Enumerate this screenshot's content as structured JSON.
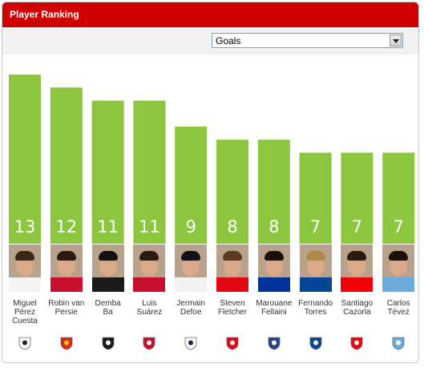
{
  "header": {
    "title": "Player Ranking"
  },
  "filter": {
    "selected": "Goals"
  },
  "colors": {
    "header": "#d00000",
    "bar": "#8cc63f"
  },
  "chart_data": {
    "type": "bar",
    "title": "",
    "xlabel": "",
    "ylabel": "",
    "ylim": [
      0,
      13
    ],
    "categories": [
      "Miguel Pérez Cuesta",
      "Robin van Persie",
      "Demba Ba",
      "Luis Suárez",
      "Jermain Defoe",
      "Steven Fletcher",
      "Marouane Fellaini",
      "Fernando Torres",
      "Santiago Cazorla",
      "Carlos Tévez"
    ],
    "values": [
      13,
      12,
      11,
      11,
      9,
      8,
      8,
      7,
      7,
      7
    ],
    "value_labels": [
      "13",
      "12",
      "11",
      "11",
      "9",
      "8",
      "8",
      "7",
      "7",
      "7"
    ]
  },
  "players": [
    {
      "first": "Miguel",
      "second": "Pérez",
      "third": "Cuesta",
      "club_icon": "swansea-crest-icon",
      "shirt": "#f4f4f4",
      "hair": "#3a2617",
      "crest": "#ffffff",
      "crest_fg": "#222222"
    },
    {
      "first": "Robin van",
      "second": "Persie",
      "third": "",
      "club_icon": "manchester-united-crest-icon",
      "shirt": "#c8102e",
      "hair": "#2a1a10",
      "crest": "#da291c",
      "crest_fg": "#f6c700"
    },
    {
      "first": "Demba",
      "second": "Ba",
      "third": "",
      "club_icon": "newcastle-crest-icon",
      "shirt": "#1a1a1a",
      "hair": "#111111",
      "crest": "#1a1a1a",
      "crest_fg": "#ffffff"
    },
    {
      "first": "Luis",
      "second": "Suárez",
      "third": "",
      "club_icon": "liverpool-crest-icon",
      "shirt": "#c8102e",
      "hair": "#2a1a10",
      "crest": "#c8102e",
      "crest_fg": "#ffffff"
    },
    {
      "first": "Jermain",
      "second": "Defoe",
      "third": "",
      "club_icon": "tottenham-crest-icon",
      "shirt": "#f2f2f2",
      "hair": "#111111",
      "crest": "#ffffff",
      "crest_fg": "#132257"
    },
    {
      "first": "Steven",
      "second": "Fletcher",
      "third": "",
      "club_icon": "sunderland-crest-icon",
      "shirt": "#e30613",
      "hair": "#5a3a20",
      "crest": "#e30613",
      "crest_fg": "#ffffff"
    },
    {
      "first": "Marouane",
      "second": "Fellaini",
      "third": "",
      "club_icon": "everton-crest-icon",
      "shirt": "#003399",
      "hair": "#1a1008",
      "crest": "#274488",
      "crest_fg": "#ffffff"
    },
    {
      "first": "Fernando",
      "second": "Torres",
      "third": "",
      "club_icon": "chelsea-crest-icon",
      "shirt": "#034694",
      "hair": "#b08a4a",
      "crest": "#034694",
      "crest_fg": "#ffffff"
    },
    {
      "first": "Santiago",
      "second": "Cazorla",
      "third": "",
      "club_icon": "arsenal-crest-icon",
      "shirt": "#ef0107",
      "hair": "#2a1a10",
      "crest": "#ef0107",
      "crest_fg": "#ffffff"
    },
    {
      "first": "Carlos",
      "second": "Tévez",
      "third": "",
      "club_icon": "manchester-city-crest-icon",
      "shirt": "#6cabdd",
      "hair": "#1a1008",
      "crest": "#6cabdd",
      "crest_fg": "#ffffff"
    }
  ]
}
